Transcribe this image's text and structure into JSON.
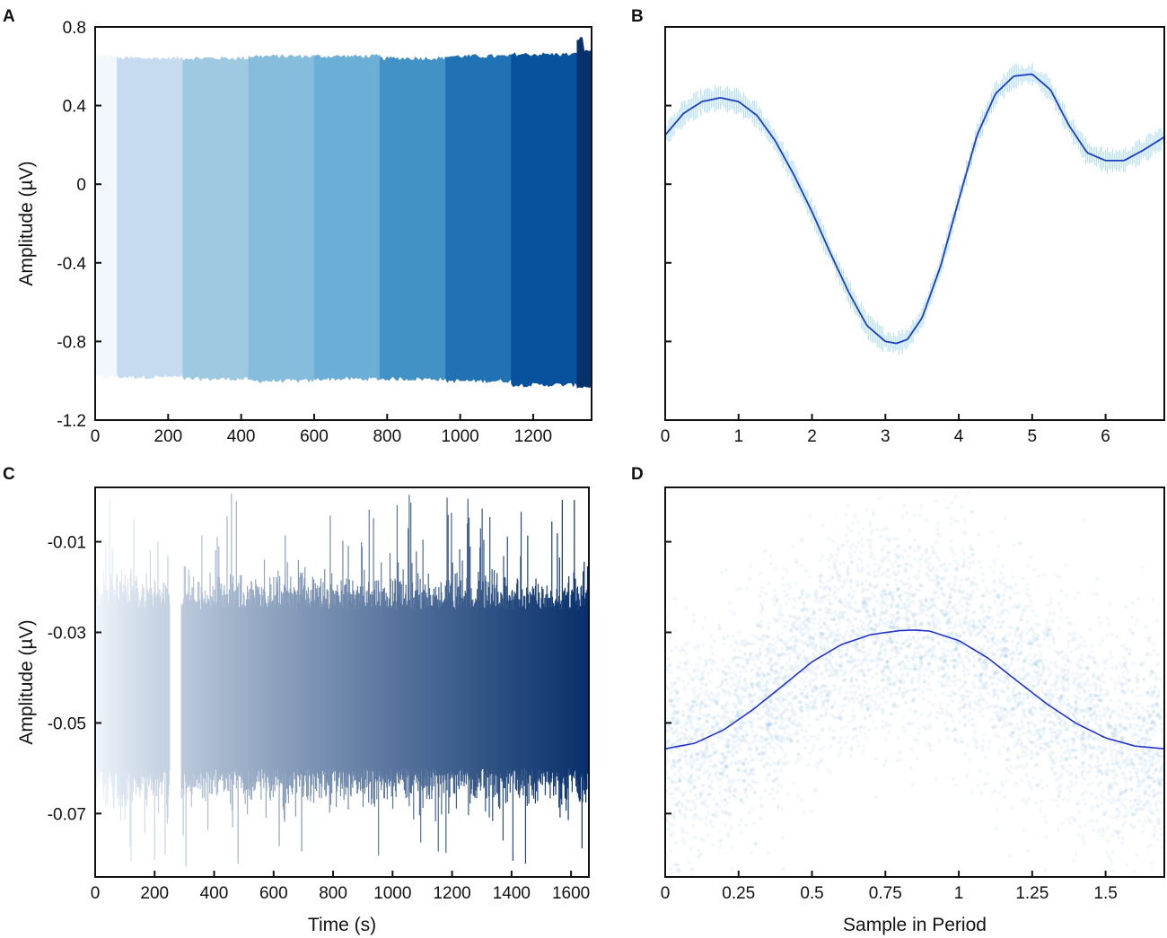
{
  "chart_data": [
    {
      "panel": "A",
      "type": "area",
      "xlabel": "",
      "ylabel": "Amplitude (µV)",
      "xlim": [
        0,
        1360
      ],
      "ylim": [
        -1.2,
        0.8
      ],
      "xticks": [
        0,
        200,
        400,
        600,
        800,
        1000,
        1200
      ],
      "yticks": [
        -1.2,
        -0.8,
        -0.4,
        0,
        0.4,
        0.8
      ],
      "ytick_labels": [
        "-1.2",
        "-0.8",
        "-0.4",
        "0",
        "0.4",
        "0.8"
      ],
      "segments": [
        {
          "x0": 0,
          "x1": 60,
          "top": 0.65,
          "bottom": -0.98,
          "color": "#f2f7fd"
        },
        {
          "x0": 60,
          "x1": 240,
          "top": 0.64,
          "bottom": -0.98,
          "color": "#c6dbef"
        },
        {
          "x0": 240,
          "x1": 420,
          "top": 0.64,
          "bottom": -0.99,
          "color": "#9ecae1"
        },
        {
          "x0": 420,
          "x1": 600,
          "top": 0.65,
          "bottom": -1.0,
          "color": "#86bcdc"
        },
        {
          "x0": 600,
          "x1": 780,
          "top": 0.65,
          "bottom": -0.99,
          "color": "#6baed6"
        },
        {
          "x0": 780,
          "x1": 960,
          "top": 0.64,
          "bottom": -0.99,
          "color": "#4292c6"
        },
        {
          "x0": 960,
          "x1": 1140,
          "top": 0.65,
          "bottom": -1.0,
          "color": "#2171b5"
        },
        {
          "x0": 1140,
          "x1": 1320,
          "top": 0.66,
          "bottom": -1.02,
          "color": "#08519c"
        },
        {
          "x0": 1320,
          "x1": 1360,
          "top": 0.68,
          "bottom": -1.03,
          "color": "#08306b"
        }
      ]
    },
    {
      "panel": "B",
      "type": "line",
      "xlabel": "",
      "ylabel": "",
      "xlim": [
        0,
        6.8
      ],
      "ylim": [
        -1.2,
        0.8
      ],
      "xticks": [
        0,
        1,
        2,
        3,
        4,
        5,
        6
      ],
      "yticks": [
        -1.2,
        -0.8,
        -0.4,
        0,
        0.4,
        0.8
      ],
      "series": [
        {
          "x": [
            0,
            0.25,
            0.5,
            0.75,
            1.0,
            1.25,
            1.5,
            1.75,
            2.0,
            2.25,
            2.5,
            2.75,
            3.0,
            3.15,
            3.3,
            3.5,
            3.75,
            4.0,
            4.25,
            4.5,
            4.75,
            5.0,
            5.25,
            5.5,
            5.75,
            6.0,
            6.25,
            6.5,
            6.8
          ],
          "y": [
            0.25,
            0.36,
            0.42,
            0.44,
            0.42,
            0.35,
            0.22,
            0.05,
            -0.14,
            -0.35,
            -0.55,
            -0.72,
            -0.8,
            -0.81,
            -0.79,
            -0.68,
            -0.42,
            -0.08,
            0.25,
            0.46,
            0.55,
            0.56,
            0.48,
            0.3,
            0.16,
            0.12,
            0.12,
            0.17,
            0.24
          ]
        }
      ],
      "line_color": "#1c3fbd",
      "band_color": "#7fc6e6",
      "band_halfwidth": 0.05
    },
    {
      "panel": "C",
      "type": "area",
      "xlabel": "Time (s)",
      "ylabel": "Amplitude (µV)",
      "xlim": [
        0,
        1660
      ],
      "ylim": [
        -0.084,
        0.002
      ],
      "xticks": [
        0,
        200,
        400,
        600,
        800,
        1000,
        1200,
        1400,
        1600
      ],
      "yticks": [
        -0.07,
        -0.05,
        -0.03,
        -0.01
      ],
      "ytick_labels": [
        "-0.07",
        "-0.05",
        "-0.03",
        "-0.01"
      ],
      "core_top": -0.025,
      "core_bottom": -0.06,
      "gap": [
        250,
        290
      ],
      "color_start": "#f0f6fc",
      "color_end": "#08306b"
    },
    {
      "panel": "D",
      "type": "scatter",
      "xlabel": "Sample in Period",
      "ylabel": "",
      "xlim": [
        0,
        1.7
      ],
      "ylim": [
        -0.084,
        0.002
      ],
      "xticks": [
        0,
        0.25,
        0.5,
        0.75,
        1,
        1.25,
        1.5
      ],
      "xtick_labels": [
        "0",
        "0.25",
        "0.5",
        "0.75",
        "1",
        "1.25",
        "1.5"
      ],
      "yticks": [
        -0.07,
        -0.05,
        -0.03,
        -0.01
      ],
      "series": [
        {
          "x": [
            0,
            0.1,
            0.2,
            0.3,
            0.4,
            0.5,
            0.6,
            0.7,
            0.8,
            0.85,
            0.9,
            1.0,
            1.1,
            1.2,
            1.3,
            1.4,
            1.5,
            1.6,
            1.7
          ],
          "y": [
            -0.0557,
            -0.0545,
            -0.0515,
            -0.047,
            -0.0418,
            -0.0365,
            -0.0327,
            -0.0305,
            -0.0296,
            -0.0295,
            -0.0297,
            -0.0318,
            -0.0357,
            -0.0408,
            -0.0458,
            -0.0501,
            -0.0533,
            -0.0551,
            -0.0557
          ]
        }
      ],
      "line_color": "#2233cc",
      "cloud_color": "#3a8fc2",
      "cloud_spread": 0.012
    }
  ]
}
